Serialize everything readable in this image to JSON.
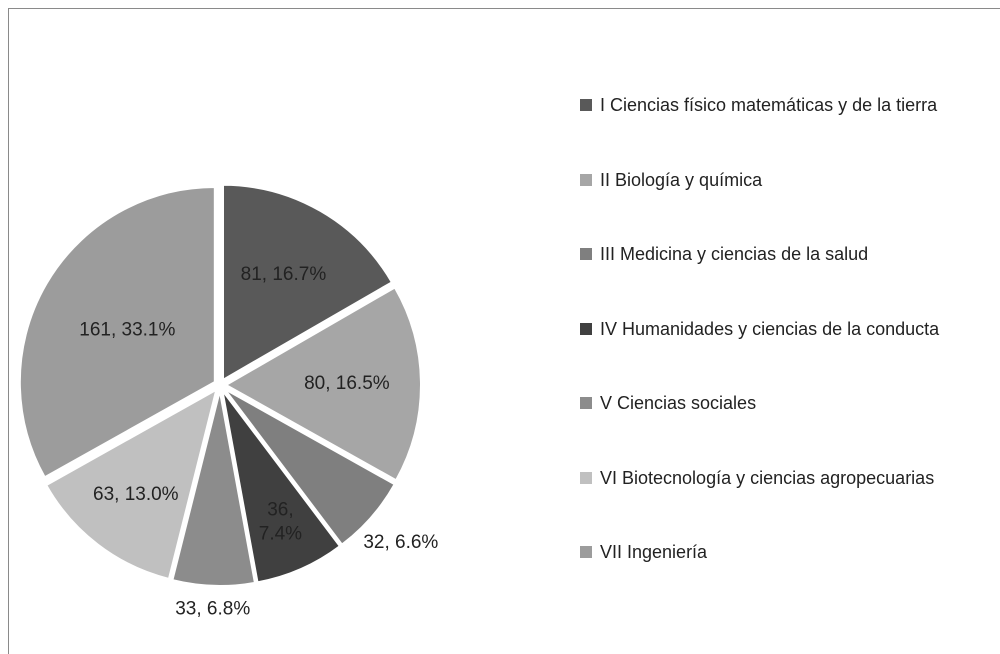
{
  "chart_data": {
    "type": "pie",
    "categories": [
      "I Ciencias físico matemáticas  y de la tierra",
      "II Biología y química",
      "III Medicina y ciencias de la salud",
      "IV Humanidades y ciencias de la conducta",
      "V Ciencias sociales",
      "VI Biotecnología y ciencias agropecuarias",
      "VII Ingeniería"
    ],
    "values": [
      81,
      80,
      32,
      36,
      33,
      63,
      161
    ],
    "value_labels": [
      "81, 16.7%",
      "80, 16.5%",
      "32, 6.6%",
      "36, 7.4%",
      "33, 6.8%",
      "63, 13.0%",
      "161, 33.1%"
    ],
    "colors": [
      "#595959",
      "#a6a6a6",
      "#7f7f7f",
      "#404040",
      "#8c8c8c",
      "#c0c0c0",
      "#9c9c9c"
    ],
    "legend": "right"
  }
}
